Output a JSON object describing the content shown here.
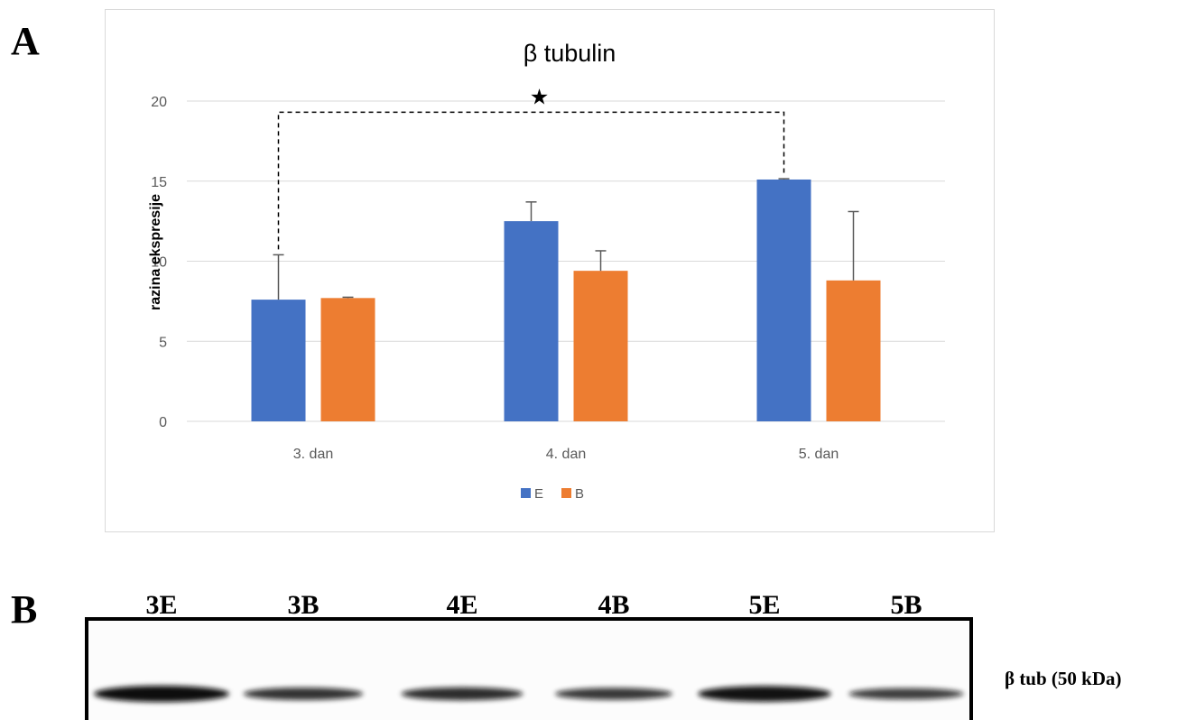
{
  "panels": {
    "a_label": "A",
    "b_label": "B"
  },
  "chart_data": {
    "type": "bar",
    "title": "β tubulin",
    "ylabel": "razina ekspresije",
    "xlabel": "",
    "categories": [
      "3. dan",
      "4. dan",
      "5. dan"
    ],
    "ylim": [
      0,
      20
    ],
    "yticks": [
      0,
      5,
      10,
      15,
      20
    ],
    "grid": true,
    "legend_position": "bottom",
    "series": [
      {
        "name": "E",
        "color": "#4472C4",
        "values": [
          7.6,
          12.5,
          15.1
        ],
        "errors": [
          2.8,
          1.2,
          0.05
        ]
      },
      {
        "name": "B",
        "color": "#ED7D31",
        "values": [
          7.7,
          9.4,
          8.8
        ],
        "errors": [
          0.05,
          1.25,
          4.3
        ]
      }
    ],
    "annotations": [
      {
        "type": "significance-bracket",
        "symbol": "★",
        "from": {
          "category": "3. dan",
          "series": "E"
        },
        "to": {
          "category": "5. dan",
          "series": "E"
        },
        "level": 19.3
      }
    ]
  },
  "blot": {
    "lanes": [
      "3E",
      "3B",
      "4E",
      "4B",
      "5E",
      "5B"
    ],
    "band_label": "β tub (50 kDa)",
    "band_intensity": [
      1.0,
      0.65,
      0.7,
      0.6,
      0.95,
      0.55
    ]
  }
}
